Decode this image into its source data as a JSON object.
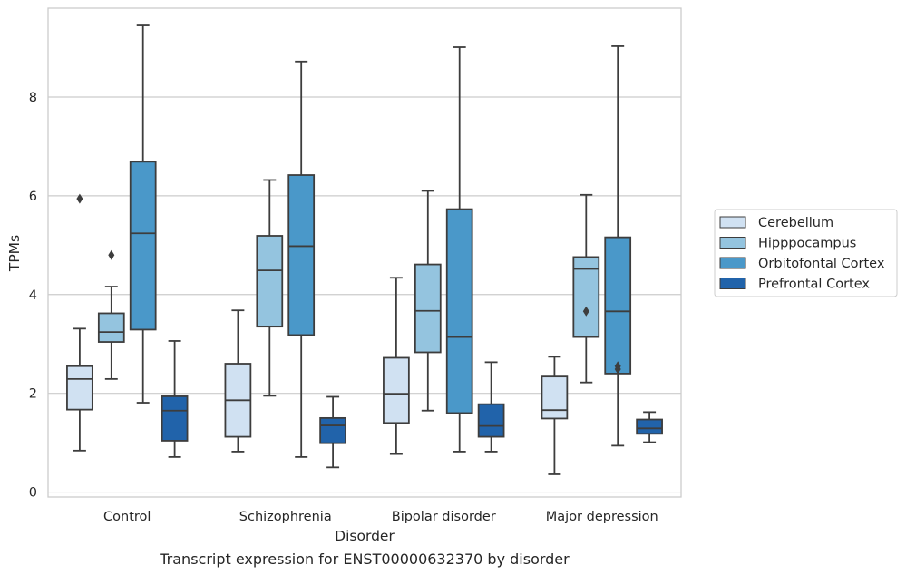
{
  "caption": "Transcript expression for ENST00000632370 by disorder",
  "chart_data": {
    "type": "box",
    "xlabel": "Disorder",
    "ylabel": "TPMs",
    "ylim": [
      -0.1,
      9.8
    ],
    "yticks": [
      "0",
      "2",
      "4",
      "6",
      "8"
    ],
    "ytick_values": [
      0,
      2,
      4,
      6,
      8
    ],
    "grid": "horizontal",
    "legend_position": "right",
    "categories": [
      "Control",
      "Schizophrenia",
      "Bipolar disorder",
      "Major depression"
    ],
    "series": [
      {
        "name": "Cerebellum",
        "color": "#d0e1f2",
        "boxes": [
          {
            "min": 0.84,
            "q1": 1.67,
            "median": 2.29,
            "q3": 2.55,
            "max": 3.31,
            "outliers": [
              5.94
            ]
          },
          {
            "min": 0.82,
            "q1": 1.12,
            "median": 1.86,
            "q3": 2.6,
            "max": 3.68,
            "outliers": []
          },
          {
            "min": 0.77,
            "q1": 1.4,
            "median": 1.99,
            "q3": 2.72,
            "max": 4.34,
            "outliers": []
          },
          {
            "min": 0.36,
            "q1": 1.49,
            "median": 1.66,
            "q3": 2.34,
            "max": 2.74,
            "outliers": []
          }
        ]
      },
      {
        "name": "Hipppocampus",
        "color": "#94c4df",
        "boxes": [
          {
            "min": 2.29,
            "q1": 3.04,
            "median": 3.24,
            "q3": 3.62,
            "max": 4.16,
            "outliers": [
              4.8
            ]
          },
          {
            "min": 1.95,
            "q1": 3.35,
            "median": 4.49,
            "q3": 5.19,
            "max": 6.32,
            "outliers": []
          },
          {
            "min": 1.65,
            "q1": 2.83,
            "median": 3.67,
            "q3": 4.61,
            "max": 6.1,
            "outliers": []
          },
          {
            "min": 2.22,
            "q1": 3.14,
            "median": 4.52,
            "q3": 4.76,
            "max": 6.02,
            "outliers": [
              3.66
            ]
          }
        ]
      },
      {
        "name": "Orbitofontal Cortex",
        "color": "#4a98c9",
        "boxes": [
          {
            "min": 1.81,
            "q1": 3.29,
            "median": 5.24,
            "q3": 6.69,
            "max": 9.45,
            "outliers": []
          },
          {
            "min": 0.71,
            "q1": 3.18,
            "median": 4.98,
            "q3": 6.42,
            "max": 8.72,
            "outliers": []
          },
          {
            "min": 0.82,
            "q1": 1.6,
            "median": 3.14,
            "q3": 5.73,
            "max": 9.01,
            "outliers": []
          },
          {
            "min": 0.94,
            "q1": 2.4,
            "median": 3.66,
            "q3": 5.16,
            "max": 9.03,
            "outliers": [
              2.55,
              2.49
            ]
          }
        ]
      },
      {
        "name": "Prefrontal Cortex",
        "color": "#2163aa",
        "boxes": [
          {
            "min": 0.71,
            "q1": 1.04,
            "median": 1.65,
            "q3": 1.94,
            "max": 3.06,
            "outliers": []
          },
          {
            "min": 0.5,
            "q1": 0.99,
            "median": 1.35,
            "q3": 1.5,
            "max": 1.93,
            "outliers": []
          },
          {
            "min": 0.82,
            "q1": 1.12,
            "median": 1.34,
            "q3": 1.78,
            "max": 2.63,
            "outliers": []
          },
          {
            "min": 1.01,
            "q1": 1.18,
            "median": 1.29,
            "q3": 1.47,
            "max": 1.62,
            "outliers": []
          }
        ]
      }
    ]
  }
}
